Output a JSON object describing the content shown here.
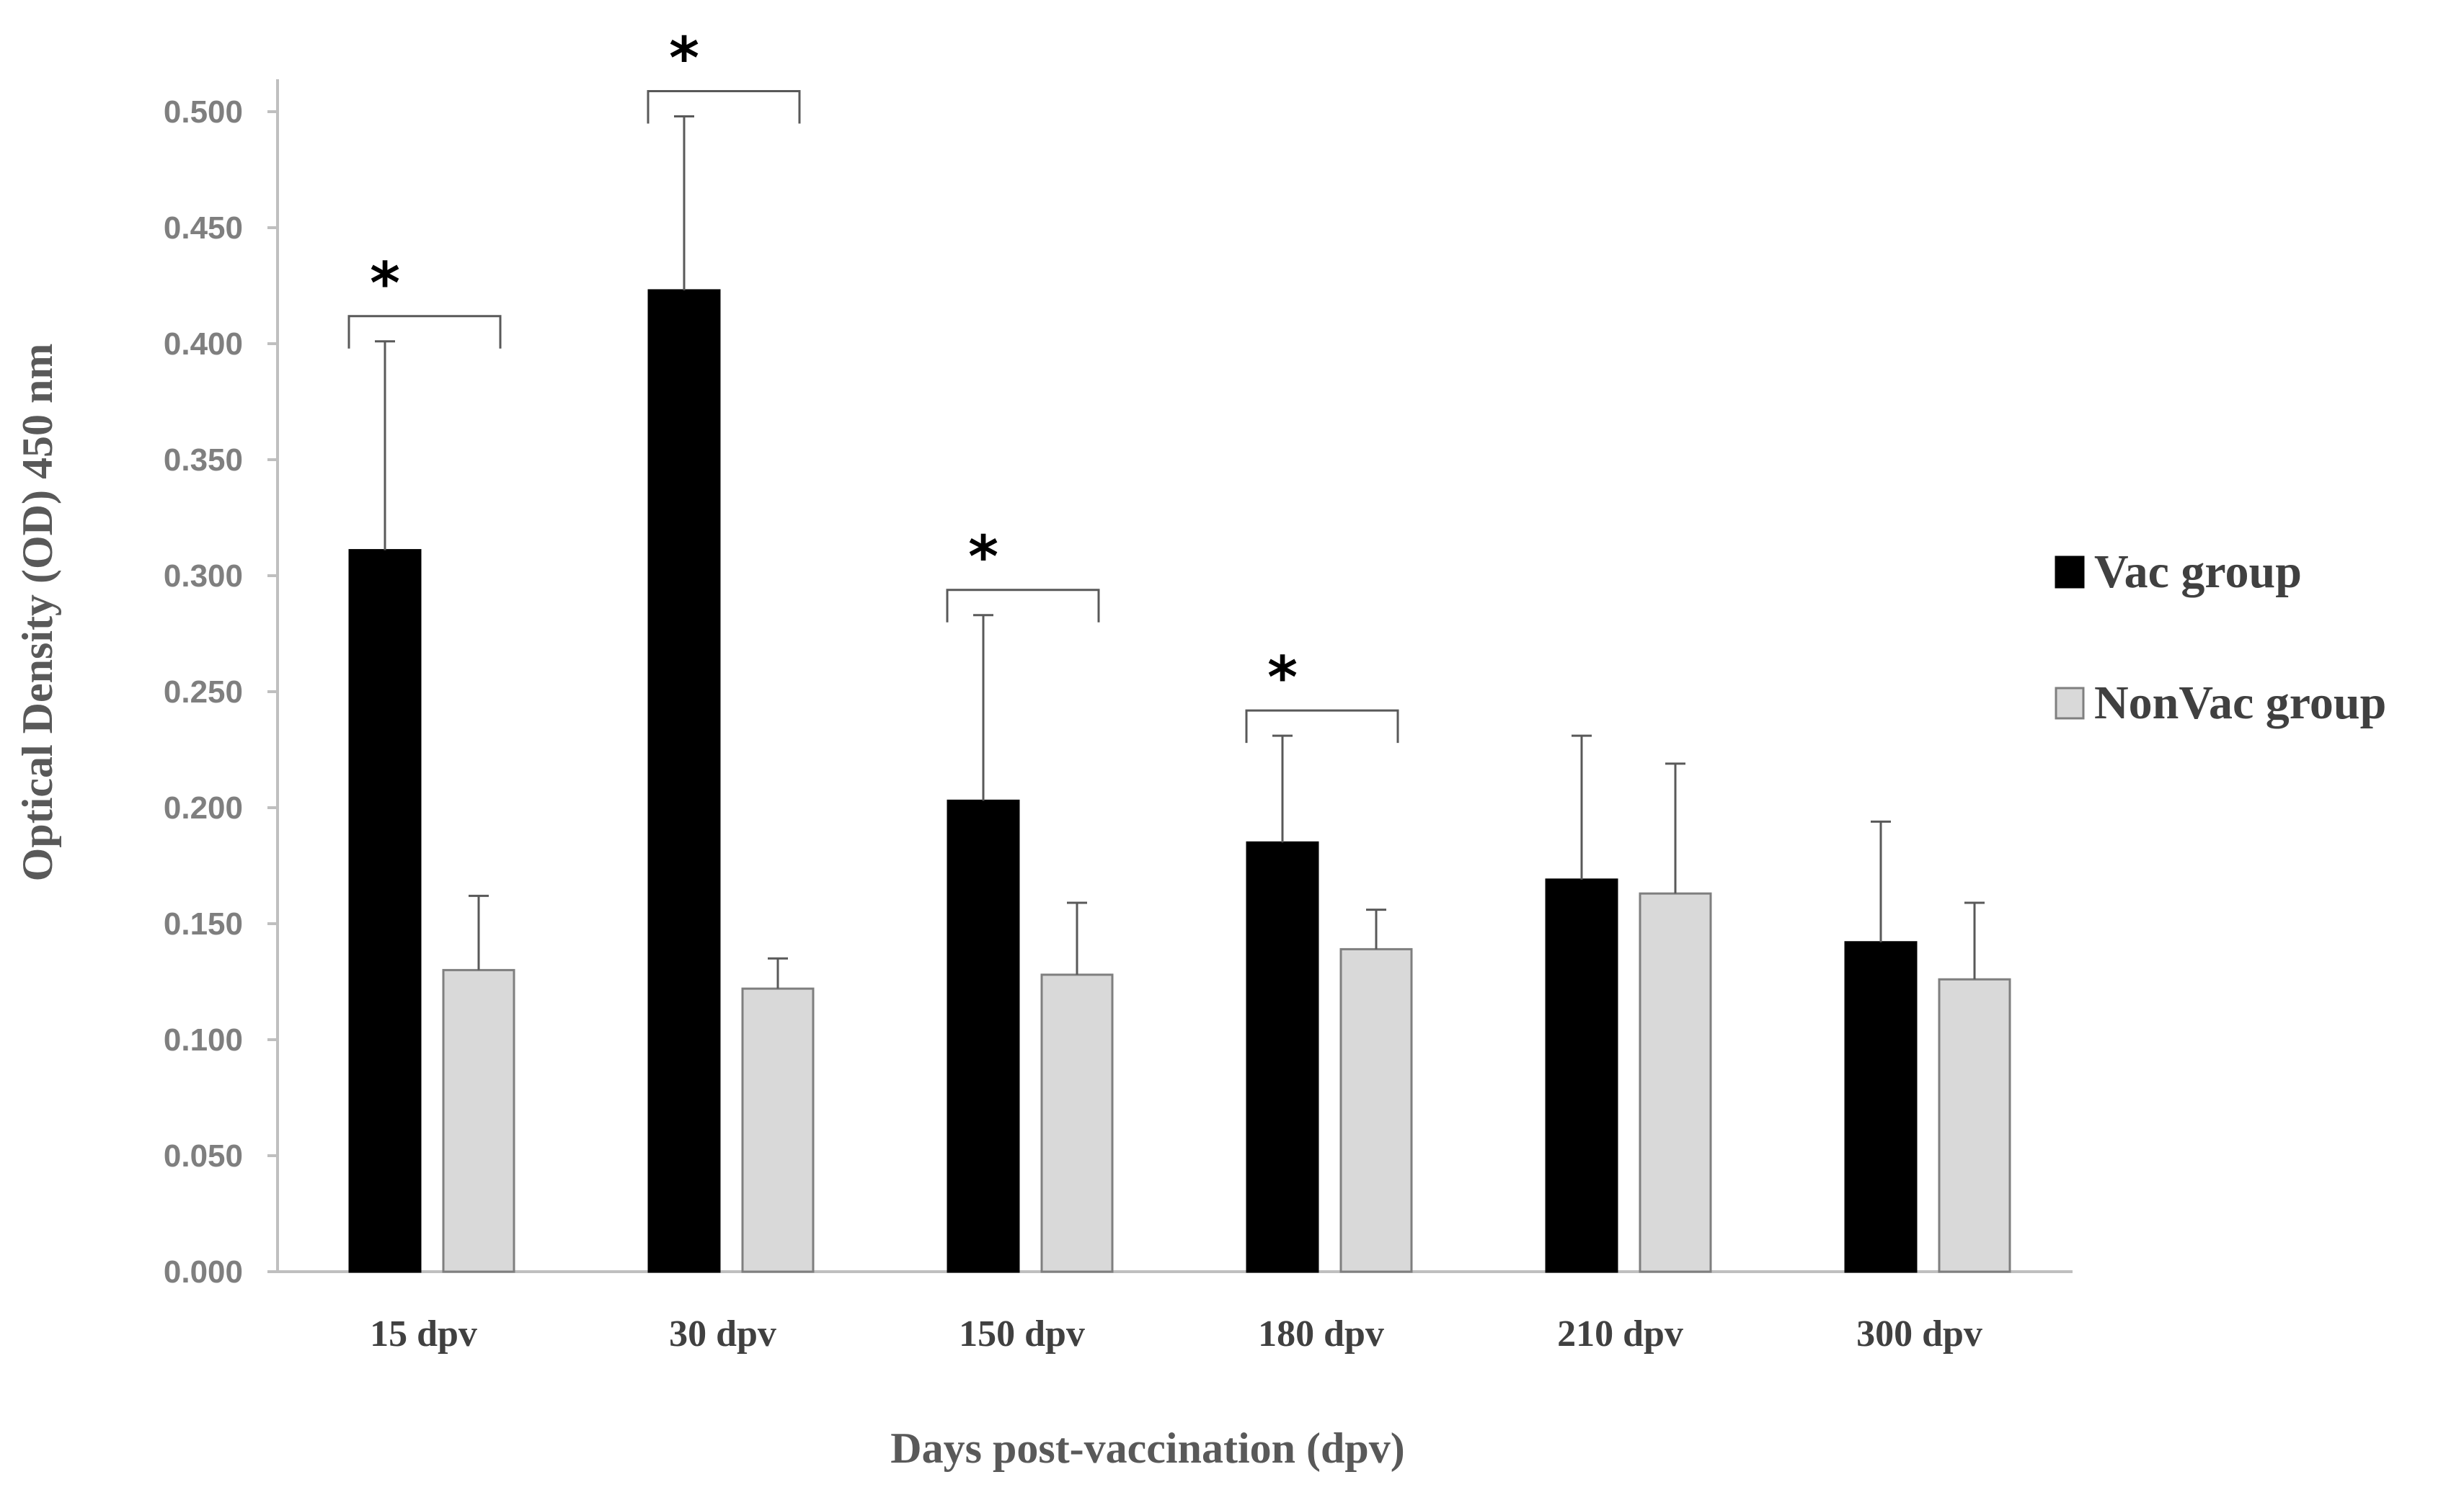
{
  "chart_data": {
    "type": "bar",
    "title": "",
    "xlabel": "Days post-vaccination (dpv)",
    "ylabel": "Optical Density (OD) 450 nm",
    "ylim": [
      0,
      0.5
    ],
    "yticks": [
      "0.000",
      "0.050",
      "0.100",
      "0.150",
      "0.200",
      "0.250",
      "0.300",
      "0.350",
      "0.400",
      "0.450",
      "0.500"
    ],
    "categories": [
      "15 dpv",
      "30 dpv",
      "150 dpv",
      "180 dpv",
      "210 dpv",
      "300 dpv"
    ],
    "series": [
      {
        "name": "Vac group",
        "color": "#000000",
        "values": [
          0.311,
          0.423,
          0.203,
          0.185,
          0.169,
          0.142
        ],
        "errors": [
          0.09,
          0.075,
          0.08,
          0.046,
          0.062,
          0.052
        ]
      },
      {
        "name": "NonVac group",
        "color": "#d9d9d9",
        "values": [
          0.13,
          0.122,
          0.128,
          0.139,
          0.163,
          0.126
        ],
        "errors": [
          0.032,
          0.013,
          0.031,
          0.017,
          0.056,
          0.033
        ]
      }
    ],
    "significance": [
      {
        "category": "15 dpv",
        "label": "*"
      },
      {
        "category": "30 dpv",
        "label": "*"
      },
      {
        "category": "150 dpv",
        "label": "*"
      },
      {
        "category": "180 dpv",
        "label": "*"
      }
    ],
    "legend_position": "right",
    "grid": false
  }
}
